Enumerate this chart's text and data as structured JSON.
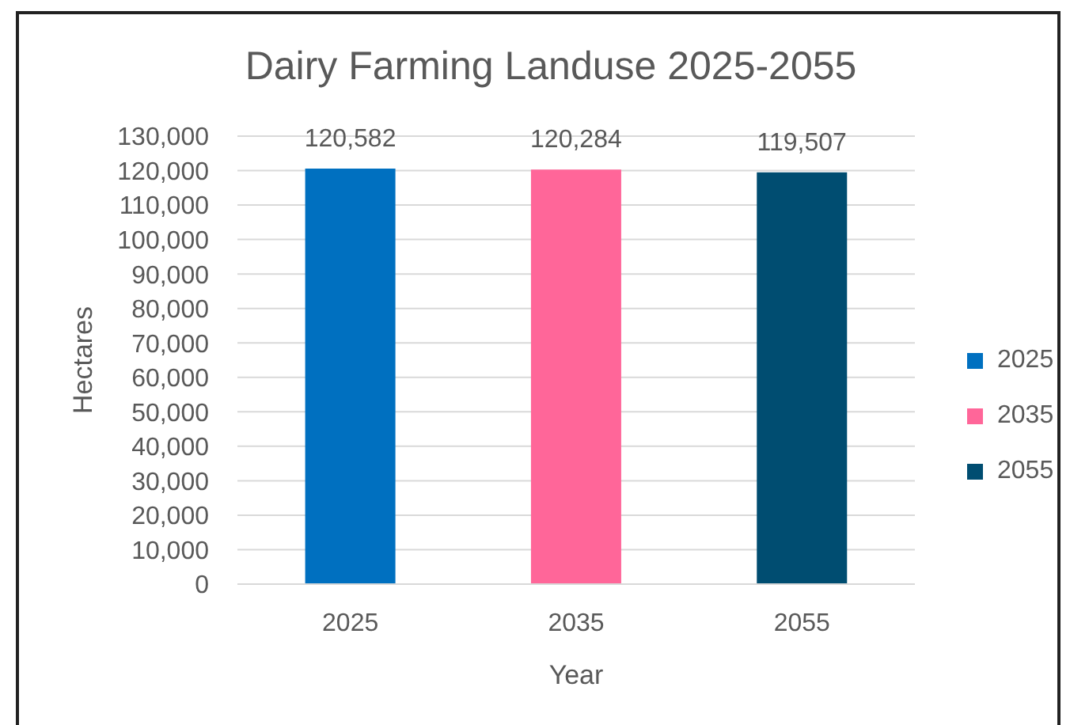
{
  "chart_data": {
    "type": "bar",
    "title": "Dairy Farming Landuse 2025-2055",
    "xlabel": "Year",
    "ylabel": "Hectares",
    "categories": [
      "2025",
      "2035",
      "2055"
    ],
    "series": [
      {
        "name": "2025",
        "color": "#0070c0",
        "values": [
          120582,
          null,
          null
        ],
        "value_labels": [
          "120,582",
          null,
          null
        ]
      },
      {
        "name": "2035",
        "color": "#ff6699",
        "values": [
          null,
          120284,
          null
        ],
        "value_labels": [
          null,
          "120,284",
          null
        ]
      },
      {
        "name": "2055",
        "color": "#004d71",
        "values": [
          null,
          null,
          119507
        ],
        "value_labels": [
          null,
          null,
          "119,507"
        ]
      }
    ],
    "stacked": true,
    "ylim": [
      0,
      130000
    ],
    "yticks": [
      0,
      {
        "value": 10000,
        "label": "10,000"
      },
      {
        "value": 20000,
        "label": "20,000"
      },
      {
        "value": 30000,
        "label": "30,000"
      },
      {
        "value": 40000,
        "label": "40,000"
      },
      {
        "value": 50000,
        "label": "50,000"
      },
      {
        "value": 60000,
        "label": "60,000"
      },
      {
        "value": 70000,
        "label": "70,000"
      },
      {
        "value": 80000,
        "label": "80,000"
      },
      {
        "value": 90000,
        "label": "90,000"
      },
      {
        "value": 100000,
        "label": "100,000"
      },
      {
        "value": 110000,
        "label": "110,000"
      },
      {
        "value": 120000,
        "label": "120,000"
      },
      {
        "value": 130000,
        "label": "130,000"
      }
    ],
    "grid": "y",
    "legend": "right"
  }
}
